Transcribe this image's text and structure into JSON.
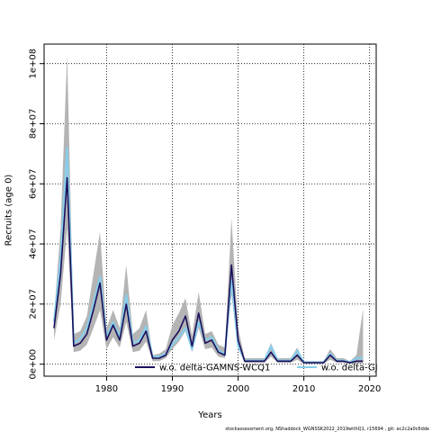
{
  "chart_data": {
    "type": "line",
    "xlabel": "Years",
    "ylabel": "Recruits (age 0)",
    "xlim": [
      1970.5,
      2021
    ],
    "ylim": [
      -4000000,
      106500000
    ],
    "x_ticks": [
      1980,
      1990,
      2000,
      2010,
      2020
    ],
    "x_tick_labels": [
      "1980",
      "1990",
      "2000",
      "2010",
      "2020"
    ],
    "y_ticks": [
      0,
      20000000,
      40000000,
      60000000,
      80000000,
      100000000
    ],
    "y_tick_labels": [
      "0e+00",
      "2e+07",
      "4e+07",
      "6e+07",
      "8e+07",
      "1e+08"
    ],
    "grid": true,
    "legend_position": "bottom",
    "x": [
      1972,
      1973,
      1974,
      1975,
      1976,
      1977,
      1978,
      1979,
      1980,
      1981,
      1982,
      1983,
      1984,
      1985,
      1986,
      1987,
      1988,
      1989,
      1990,
      1991,
      1992,
      1993,
      1994,
      1995,
      1996,
      1997,
      1998,
      1999,
      2000,
      2001,
      2002,
      2003,
      2004,
      2005,
      2006,
      2007,
      2008,
      2009,
      2010,
      2011,
      2012,
      2013,
      2014,
      2015,
      2016,
      2017,
      2018,
      2019
    ],
    "series": [
      {
        "name": "w.o. delta-GAMNS-WCQ1",
        "color": "#1a0f5c",
        "values": [
          12000000,
          30000000,
          62000000,
          6000000,
          7000000,
          10000000,
          18000000,
          27000000,
          8000000,
          13000000,
          8000000,
          20000000,
          6000000,
          7000000,
          11000000,
          2000000,
          2000000,
          3000000,
          8000000,
          11000000,
          16000000,
          6000000,
          17000000,
          7000000,
          8000000,
          4000000,
          3000000,
          33000000,
          8000000,
          1000000,
          1000000,
          1000000,
          1000000,
          4000000,
          1000000,
          1000000,
          1000000,
          3000000,
          500000,
          500000,
          500000,
          500000,
          3000000,
          1000000,
          1000000,
          500000,
          1000000,
          1000000
        ],
        "lower": [
          8000000,
          20000000,
          45000000,
          4000000,
          4500000,
          6500000,
          12000000,
          18000000,
          5000000,
          9000000,
          5500000,
          14000000,
          4000000,
          4500000,
          7500000,
          1000000,
          1000000,
          2000000,
          5000000,
          7500000,
          11000000,
          4000000,
          12000000,
          5000000,
          5500000,
          2500000,
          2000000,
          23000000,
          5000000,
          500000,
          500000,
          500000,
          500000,
          2500000,
          500000,
          500000,
          500000,
          1500000,
          100000,
          100000,
          100000,
          100000,
          1500000,
          500000,
          500000,
          100000,
          200000,
          100000
        ],
        "upper": [
          16000000,
          45000000,
          103000000,
          10000000,
          11000000,
          16000000,
          30000000,
          44000000,
          12000000,
          18000000,
          12000000,
          33000000,
          10000000,
          12000000,
          18000000,
          3000000,
          3500000,
          5000000,
          13000000,
          17000000,
          22000000,
          9500000,
          24000000,
          10000000,
          11000000,
          6500000,
          5500000,
          48500000,
          12000000,
          2000000,
          2000000,
          2000000,
          2000000,
          7000000,
          2000000,
          2000000,
          2000000,
          5500000,
          1000000,
          1000000,
          1000000,
          1000000,
          5000000,
          2000000,
          2000000,
          1000000,
          3000000,
          18500000
        ]
      },
      {
        "name": "w.o. delta-GJ",
        "color": "#87ceeb",
        "values": [
          14000000,
          35000000,
          72000000,
          7000000,
          8500000,
          12000000,
          20000000,
          29000000,
          9000000,
          14000000,
          9000000,
          23000000,
          7000000,
          8000000,
          12500000,
          2500000,
          2500000,
          3500000,
          6500000,
          9000000,
          12000000,
          5000000,
          14000000,
          8000000,
          9000000,
          4500000,
          3500000,
          28000000,
          6000000,
          1200000,
          1200000,
          1200000,
          1200000,
          6000000,
          1200000,
          1200000,
          1200000,
          4500000,
          600000,
          600000,
          600000,
          600000,
          3500000,
          1200000,
          1200000,
          600000,
          2000000,
          2000000
        ]
      }
    ]
  },
  "footer": {
    "text": "stockassessment.org, NShaddock_WGNSSK2022_2019withQ1, r15694 , git: ec2c2a0c6dde"
  }
}
